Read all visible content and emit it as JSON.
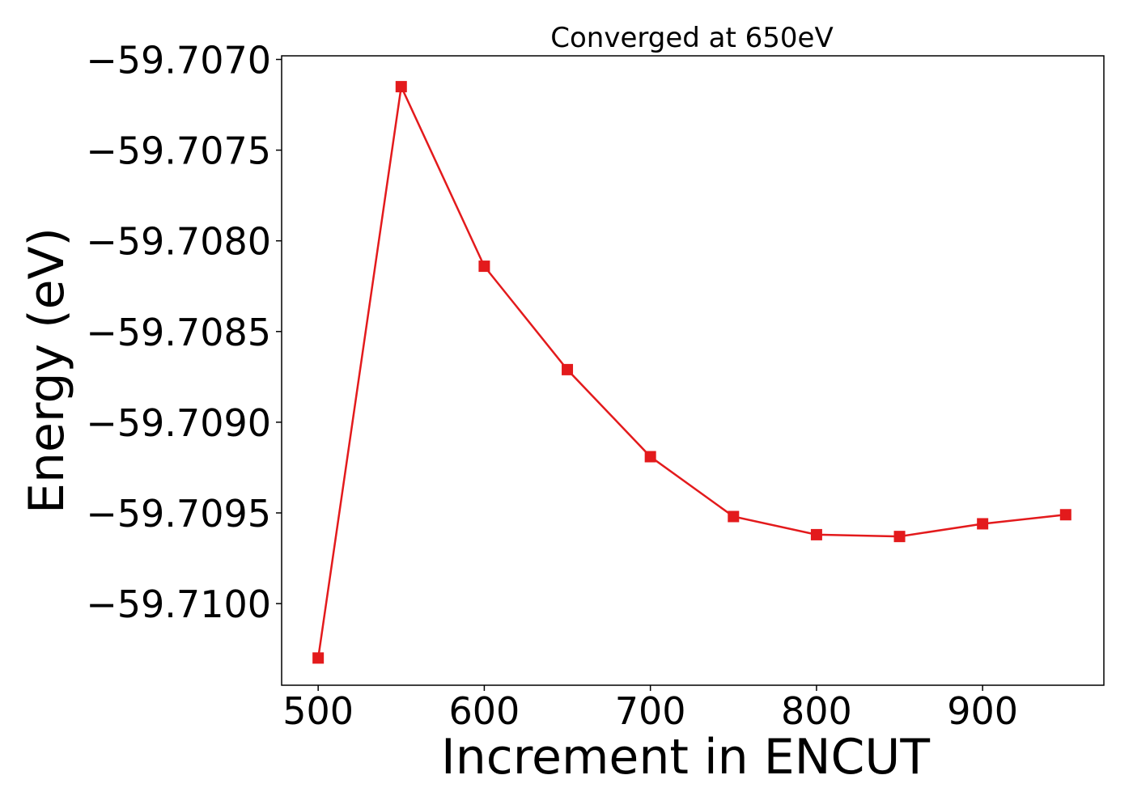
{
  "chart_data": {
    "type": "line",
    "title": "Converged at 650eV",
    "xlabel": "Increment in ENCUT",
    "ylabel": "Energy (eV)",
    "x": [
      500,
      550,
      600,
      650,
      700,
      750,
      800,
      850,
      900,
      950
    ],
    "series": [
      {
        "values": [
          -59.7103,
          -59.70715,
          -59.70814,
          -59.70871,
          -59.70919,
          -59.70952,
          -59.70962,
          -59.70963,
          -59.70956,
          -59.70951
        ],
        "color": "#e31a1c",
        "marker": "square"
      }
    ],
    "xlim": [
      478,
      973
    ],
    "ylim": [
      -59.71045,
      -59.70698
    ],
    "xticks": [
      500,
      600,
      700,
      800,
      900
    ],
    "xtick_labels": [
      "500",
      "600",
      "700",
      "800",
      "900"
    ],
    "yticks": [
      -59.707,
      -59.7075,
      -59.708,
      -59.7085,
      -59.709,
      -59.7095,
      -59.71
    ],
    "ytick_labels": [
      "−59.7070",
      "−59.7075",
      "−59.7080",
      "−59.7085",
      "−59.7090",
      "−59.7095",
      "−59.7100"
    ],
    "grid": false,
    "legend": "none"
  }
}
